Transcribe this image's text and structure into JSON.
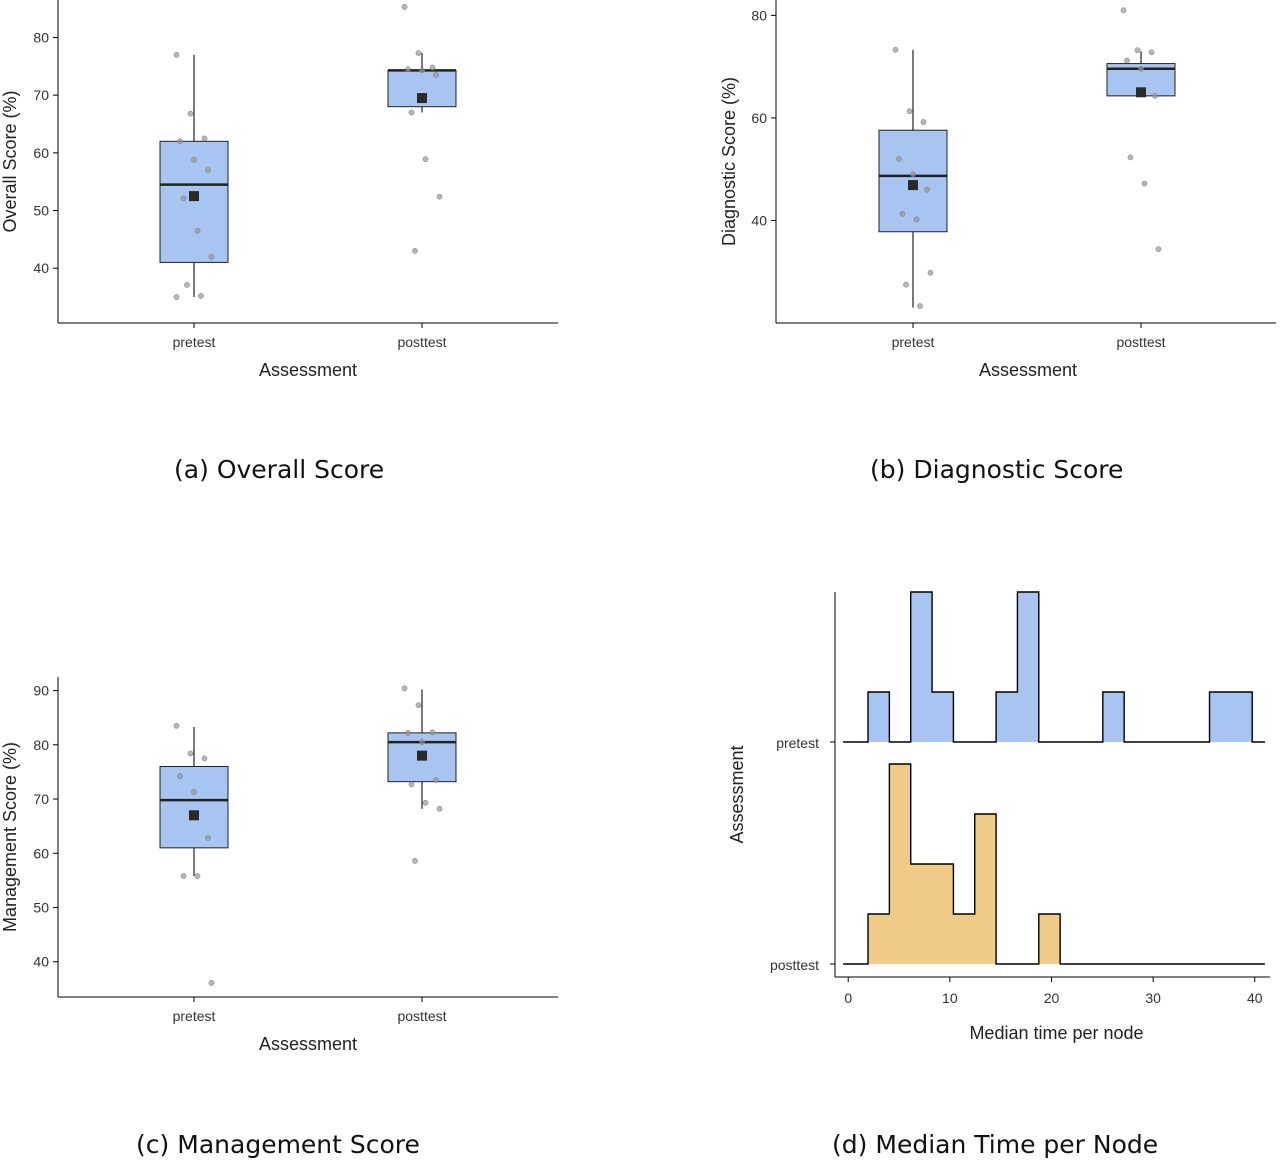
{
  "captions": {
    "a": {
      "letter": "(a)",
      "title": "Overall Score"
    },
    "b": {
      "letter": "(b)",
      "title": "Diagnostic Score"
    },
    "c": {
      "letter": "(c)",
      "title": "Management Score"
    },
    "d": {
      "letter": "(d)",
      "title": "Median Time per Node"
    }
  },
  "colors": {
    "pretest": "#a8c4f0",
    "posttest": "#f0cb88",
    "box": "#a8c4f0",
    "mean": "#2a2a2a",
    "point": "#999999"
  },
  "chart_data": [
    {
      "id": "a",
      "type": "box",
      "xlabel": "Assessment",
      "ylabel": "Overall Score (%)",
      "categories": [
        "pretest",
        "posttest"
      ],
      "ylim": [
        30.5,
        86.5
      ],
      "yticks": [
        40,
        50,
        60,
        70,
        80
      ],
      "boxes": [
        {
          "category": "pretest",
          "q1": 41,
          "median": 54.5,
          "q3": 62,
          "whisker_low": 35,
          "whisker_high": 77,
          "mean": 52.5,
          "points": [
            77,
            66.8,
            62.5,
            62,
            58.8,
            57,
            52.1,
            46.5,
            42,
            37.1,
            35.2,
            35
          ]
        },
        {
          "category": "posttest",
          "q1": 68,
          "median": 74.3,
          "q3": 74.3,
          "whisker_low": 67,
          "whisker_high": 77.3,
          "mean": 69.5,
          "points": [
            85.3,
            77.3,
            74.8,
            74.5,
            74.3,
            73.5,
            67,
            58.9,
            52.4,
            43
          ]
        }
      ]
    },
    {
      "id": "b",
      "type": "box",
      "xlabel": "Assessment",
      "ylabel": "Diagnostic Score (%)",
      "categories": [
        "pretest",
        "posttest"
      ],
      "ylim": [
        20,
        83
      ],
      "yticks": [
        40,
        60,
        80
      ],
      "boxes": [
        {
          "category": "pretest",
          "q1": 37.8,
          "median": 48.7,
          "q3": 57.6,
          "whisker_low": 23,
          "whisker_high": 73.3,
          "mean": 46.9,
          "points": [
            73.3,
            61.3,
            59.2,
            52,
            49,
            46,
            41.3,
            40.2,
            29.8,
            27.5,
            23.3
          ]
        },
        {
          "category": "posttest",
          "q1": 64.3,
          "median": 69.6,
          "q3": 70.6,
          "whisker_low": 64.3,
          "whisker_high": 73,
          "mean": 65,
          "points": [
            81,
            73.2,
            72.8,
            71.2,
            69.6,
            64.3,
            52.3,
            47.2,
            34.4
          ]
        }
      ]
    },
    {
      "id": "c",
      "type": "box",
      "xlabel": "Assessment",
      "ylabel": "Management Score  (%)",
      "categories": [
        "pretest",
        "posttest"
      ],
      "ylim": [
        33.5,
        92.5
      ],
      "yticks": [
        40,
        50,
        60,
        70,
        80,
        90
      ],
      "boxes": [
        {
          "category": "pretest",
          "q1": 61,
          "median": 69.8,
          "q3": 76,
          "whisker_low": 55.8,
          "whisker_high": 83.3,
          "mean": 67,
          "points": [
            83.5,
            78.4,
            77.5,
            74.2,
            71.3,
            62.8,
            55.8,
            55.8,
            36.1
          ]
        },
        {
          "category": "posttest",
          "q1": 73.2,
          "median": 80.5,
          "q3": 82.2,
          "whisker_low": 68.2,
          "whisker_high": 90.2,
          "mean": 78,
          "points": [
            90.4,
            87.3,
            82.3,
            82.2,
            80.5,
            73.5,
            72.7,
            69.3,
            68.2,
            58.6
          ]
        }
      ]
    },
    {
      "id": "d",
      "type": "ridgeline-histogram",
      "xlabel": "Median time per node",
      "ylabel": "Assessment",
      "categories": [
        "pretest",
        "posttest"
      ],
      "xlim": [
        -1.3,
        41.5
      ],
      "xticks": [
        0,
        10,
        20,
        30,
        40
      ],
      "binwidth": 2.1,
      "series": [
        {
          "name": "pretest",
          "bins": [
            [
              0.9,
              0
            ],
            [
              3.0,
              1
            ],
            [
              5.1,
              0
            ],
            [
              7.2,
              3
            ],
            [
              9.3,
              1
            ],
            [
              11.4,
              0
            ],
            [
              13.5,
              0
            ],
            [
              15.6,
              1
            ],
            [
              17.7,
              3
            ],
            [
              19.8,
              0
            ],
            [
              21.9,
              0
            ],
            [
              24.0,
              0
            ],
            [
              26.1,
              1
            ],
            [
              28.2,
              0
            ],
            [
              30.3,
              0
            ],
            [
              32.4,
              0
            ],
            [
              34.5,
              0
            ],
            [
              36.6,
              1
            ],
            [
              38.7,
              1
            ]
          ]
        },
        {
          "name": "posttest",
          "bins": [
            [
              0.9,
              0
            ],
            [
              3.0,
              1
            ],
            [
              5.1,
              4
            ],
            [
              7.2,
              2
            ],
            [
              9.3,
              2
            ],
            [
              11.4,
              1
            ],
            [
              13.5,
              3
            ],
            [
              15.6,
              0
            ],
            [
              17.7,
              0
            ],
            [
              19.8,
              1
            ],
            [
              21.9,
              0
            ],
            [
              24.0,
              0
            ],
            [
              26.1,
              0
            ],
            [
              28.2,
              0
            ],
            [
              30.3,
              0
            ],
            [
              32.4,
              0
            ],
            [
              34.5,
              0
            ],
            [
              36.6,
              0
            ],
            [
              38.7,
              0
            ]
          ]
        }
      ],
      "max_counts": [
        3,
        4
      ]
    }
  ]
}
